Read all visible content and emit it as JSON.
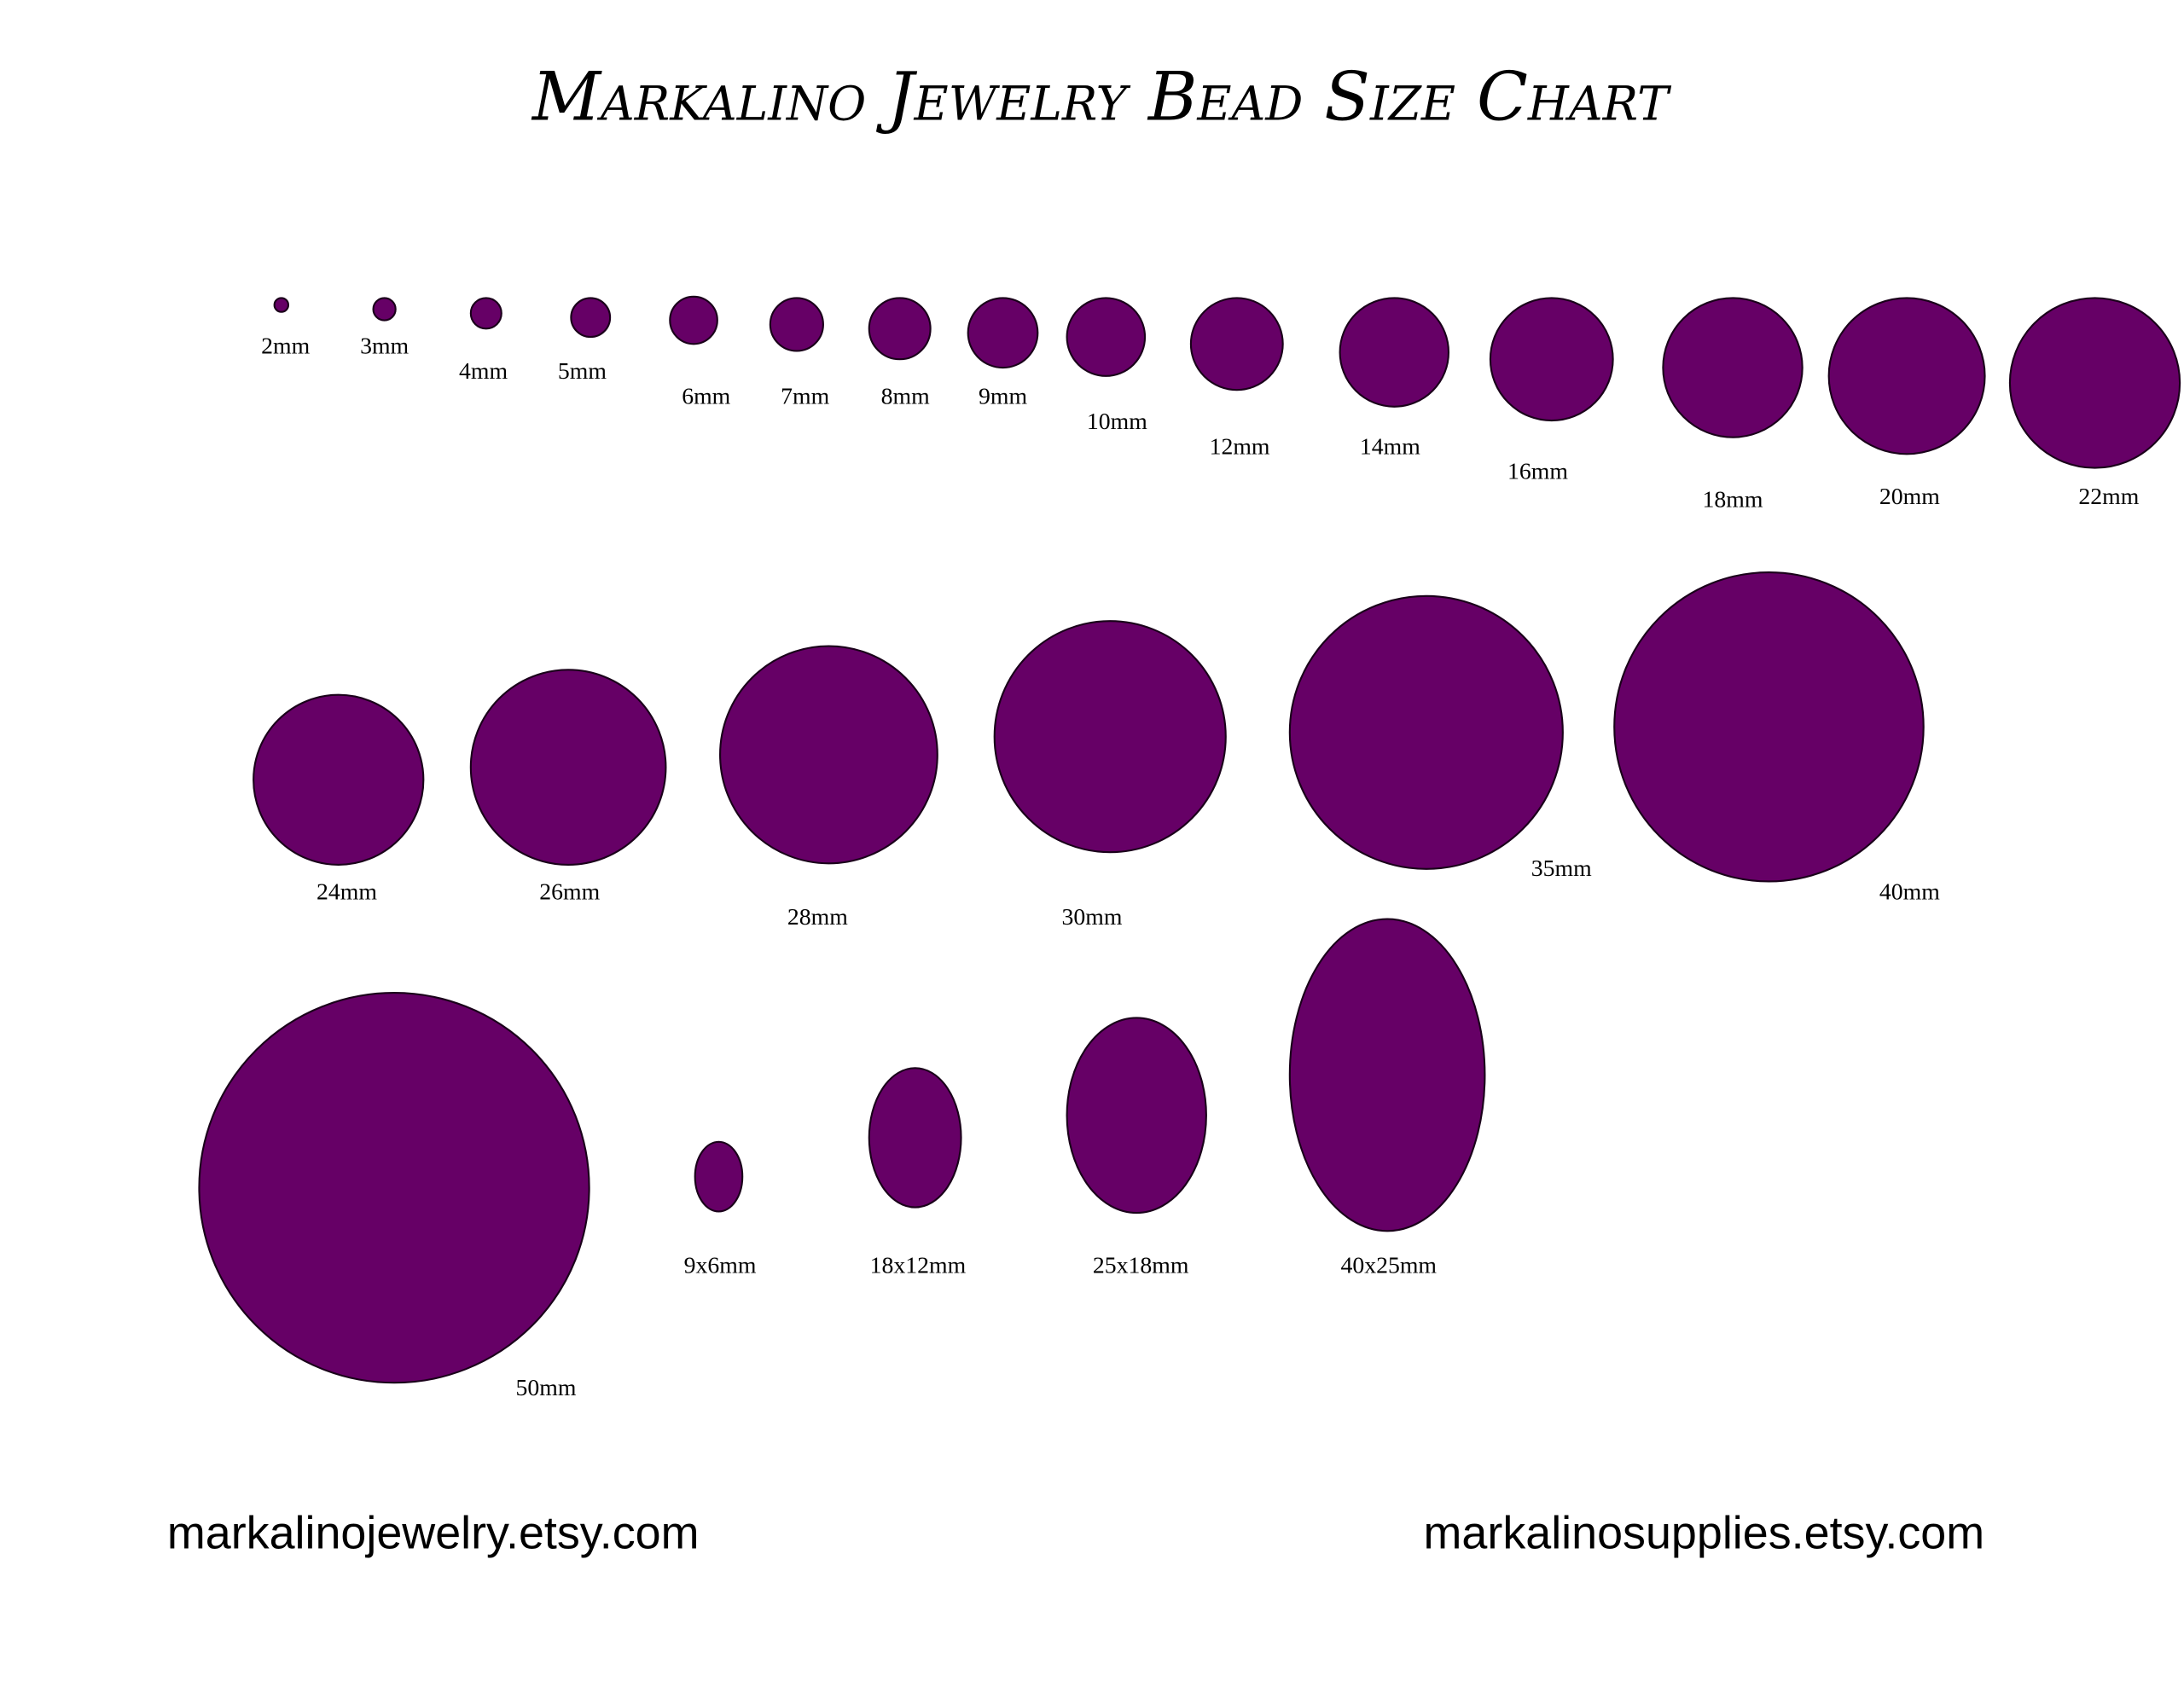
{
  "chart_data": {
    "type": "size-chart",
    "title": "Markalino Jewelry Bead Size Chart",
    "fill_color": "#660066",
    "outline_color": "#1a001a",
    "beads": [
      {
        "label": "2mm",
        "shape": "round",
        "w": 2,
        "h": 2
      },
      {
        "label": "3mm",
        "shape": "round",
        "w": 3,
        "h": 3
      },
      {
        "label": "4mm",
        "shape": "round",
        "w": 4,
        "h": 4
      },
      {
        "label": "5mm",
        "shape": "round",
        "w": 5,
        "h": 5
      },
      {
        "label": "6mm",
        "shape": "round",
        "w": 6,
        "h": 6
      },
      {
        "label": "7mm",
        "shape": "round",
        "w": 7,
        "h": 7
      },
      {
        "label": "8mm",
        "shape": "round",
        "w": 8,
        "h": 8
      },
      {
        "label": "9mm",
        "shape": "round",
        "w": 9,
        "h": 9
      },
      {
        "label": "10mm",
        "shape": "round",
        "w": 10,
        "h": 10
      },
      {
        "label": "12mm",
        "shape": "round",
        "w": 12,
        "h": 12
      },
      {
        "label": "14mm",
        "shape": "round",
        "w": 14,
        "h": 14
      },
      {
        "label": "16mm",
        "shape": "round",
        "w": 16,
        "h": 16
      },
      {
        "label": "18mm",
        "shape": "round",
        "w": 18,
        "h": 18
      },
      {
        "label": "20mm",
        "shape": "round",
        "w": 20,
        "h": 20
      },
      {
        "label": "22mm",
        "shape": "round",
        "w": 22,
        "h": 22
      },
      {
        "label": "24mm",
        "shape": "round",
        "w": 24,
        "h": 24
      },
      {
        "label": "26mm",
        "shape": "round",
        "w": 26,
        "h": 26
      },
      {
        "label": "28mm",
        "shape": "round",
        "w": 28,
        "h": 28
      },
      {
        "label": "30mm",
        "shape": "round",
        "w": 30,
        "h": 30
      },
      {
        "label": "35mm",
        "shape": "round",
        "w": 35,
        "h": 35
      },
      {
        "label": "40mm",
        "shape": "round",
        "w": 40,
        "h": 40
      },
      {
        "label": "50mm",
        "shape": "round",
        "w": 50,
        "h": 50
      },
      {
        "label": "9x6mm",
        "shape": "oval",
        "w": 6,
        "h": 9
      },
      {
        "label": "18x12mm",
        "shape": "oval",
        "w": 12,
        "h": 18
      },
      {
        "label": "25x18mm",
        "shape": "oval",
        "w": 18,
        "h": 25
      },
      {
        "label": "40x25mm",
        "shape": "oval",
        "w": 25,
        "h": 40
      }
    ]
  },
  "footer": {
    "left_link": "markalinojewelry.etsy.com",
    "right_link": "markalinosupplies.etsy.com"
  }
}
